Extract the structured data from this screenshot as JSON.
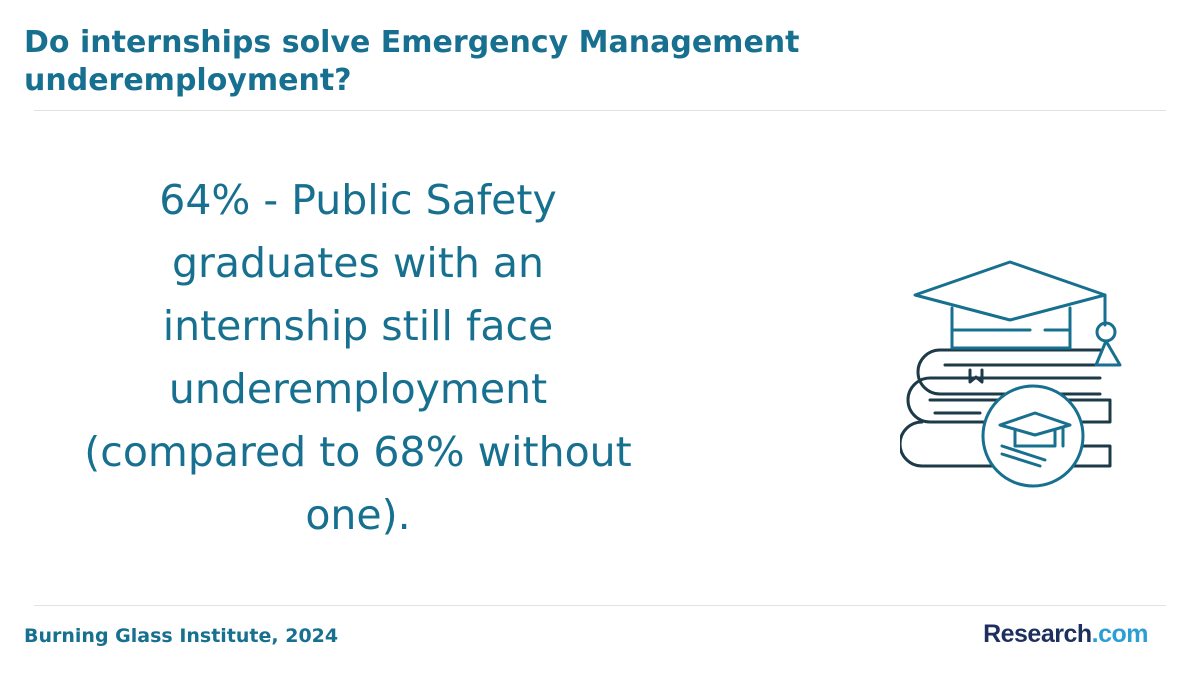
{
  "header": {
    "title": "Do internships solve Emergency Management underemployment?"
  },
  "statement": {
    "text": "64% - Public Safety graduates with an internship still face underemployment (compared to 68% without one)."
  },
  "footer": {
    "source": "Burning Glass Institute, 2024",
    "logo": {
      "name": "Research",
      "suffix": ".com"
    }
  }
}
